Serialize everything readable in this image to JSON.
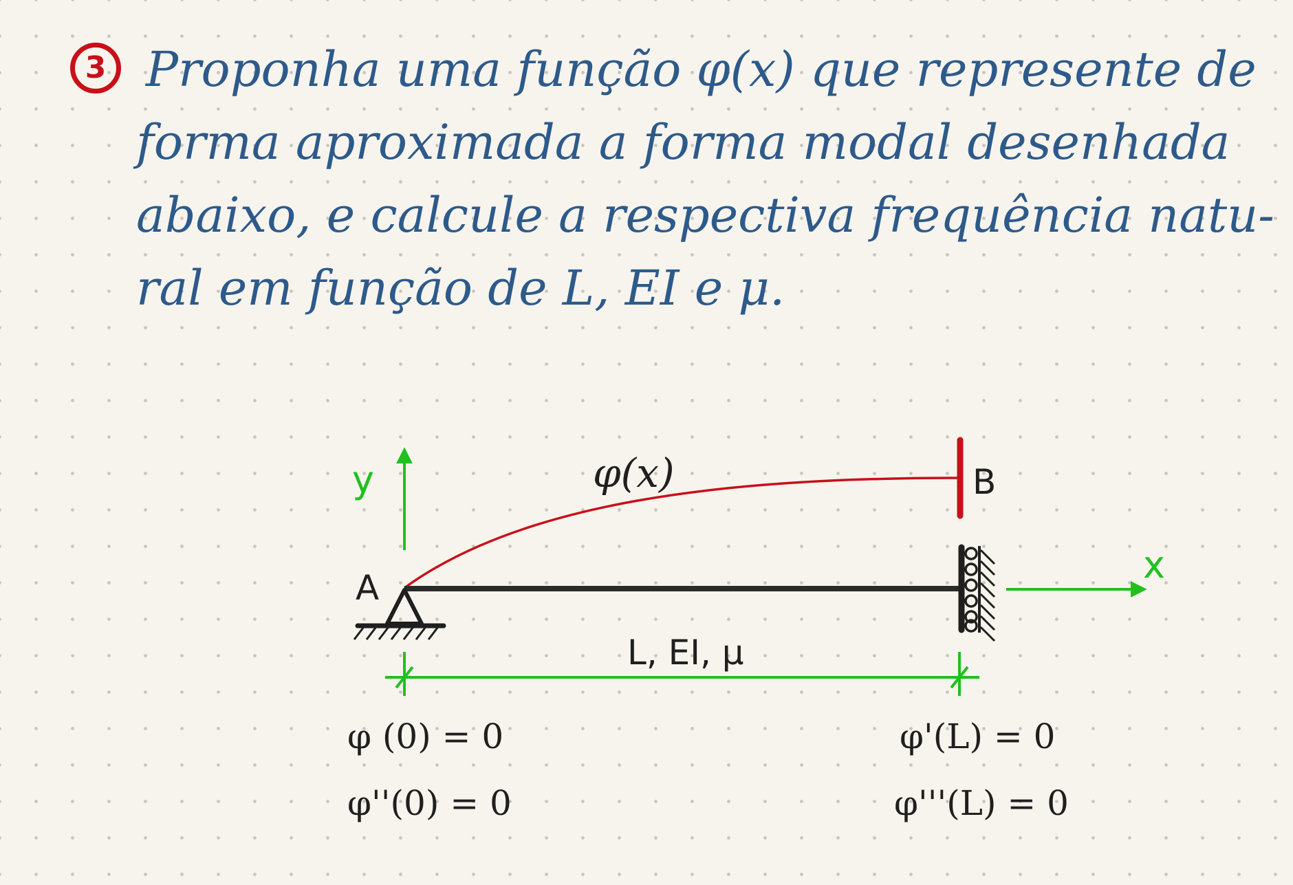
{
  "question": {
    "number": "3",
    "lines": [
      "Proponha uma função φ(x) que represente de",
      "forma aproximada a forma modal desenhada",
      "abaixo, e calcule a respectiva frequência natu-",
      "ral em função de L, EI e μ."
    ]
  },
  "diagram": {
    "curve_label": "φ(x)",
    "node_a": "A",
    "node_b": "B",
    "axis_y": "y",
    "axis_x": "x",
    "beam_props": "L, EI, μ",
    "bc_left": [
      "φ (0) = 0",
      "φ''(0) = 0"
    ],
    "bc_right": [
      "φ'(L) = 0",
      "φ'''(L) = 0"
    ],
    "colors": {
      "text_blue": "#2d5a8a",
      "number_red": "#c8101a",
      "curve_red": "#c8101a",
      "axes_green": "#1fc11f",
      "beam_dark": "#2a2a2a"
    }
  }
}
